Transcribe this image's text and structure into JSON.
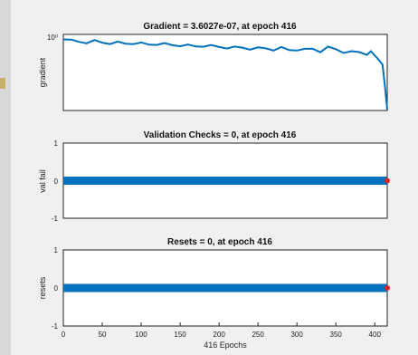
{
  "chart_data": [
    {
      "type": "line",
      "title": "Gradient = 3.6027e-07, at epoch 416",
      "ylabel": "gradient",
      "yscale": "log",
      "ytick_label": "10⁰",
      "xlim": [
        0,
        416
      ],
      "series": [
        {
          "color": "#0072BD",
          "x": [
            0,
            10,
            20,
            30,
            40,
            50,
            60,
            70,
            80,
            90,
            100,
            110,
            120,
            130,
            140,
            150,
            160,
            170,
            180,
            190,
            200,
            210,
            220,
            230,
            240,
            250,
            260,
            270,
            280,
            290,
            300,
            310,
            320,
            330,
            340,
            350,
            360,
            370,
            380,
            390,
            395,
            400,
            405,
            410,
            413,
            416
          ],
          "y": [
            1.0,
            0.55,
            0.5,
            0.45,
            0.5,
            0.42,
            0.38,
            0.36,
            0.34,
            0.38,
            0.3,
            0.28,
            0.32,
            0.27,
            0.25,
            0.24,
            0.2,
            0.19,
            0.22,
            0.18,
            0.17,
            0.15,
            0.13,
            0.15,
            0.12,
            0.11,
            0.13,
            0.1,
            0.12,
            0.09,
            0.1,
            0.08,
            0.12,
            0.07,
            0.13,
            0.11,
            0.06,
            0.05,
            0.06,
            0.04,
            0.05,
            0.03,
            0.015,
            0.004,
            5e-05,
            3.6027e-07
          ]
        }
      ]
    },
    {
      "type": "line",
      "title": "Validation Checks = 0, at epoch 416",
      "ylabel": "val fail",
      "xlim": [
        0,
        416
      ],
      "ylim": [
        -1,
        1
      ],
      "yticks": [
        "1",
        "0",
        "-1"
      ],
      "series": [
        {
          "color": "#0072BD",
          "x_range": [
            0,
            416
          ],
          "value": 0
        }
      ],
      "marker": {
        "x": 416,
        "y": 0,
        "color": "#d62728"
      }
    },
    {
      "type": "line",
      "title": "Resets = 0, at epoch 416",
      "ylabel": "resets",
      "xlabel": "416 Epochs",
      "xlim": [
        0,
        416
      ],
      "ylim": [
        -1,
        1
      ],
      "yticks": [
        "1",
        "0",
        "-1"
      ],
      "xticks": [
        "0",
        "50",
        "100",
        "150",
        "200",
        "250",
        "300",
        "350",
        "400"
      ],
      "series": [
        {
          "color": "#0072BD",
          "x_range": [
            0,
            416
          ],
          "value": 0
        }
      ],
      "marker": {
        "x": 416,
        "y": 0,
        "color": "#d62728"
      }
    }
  ]
}
